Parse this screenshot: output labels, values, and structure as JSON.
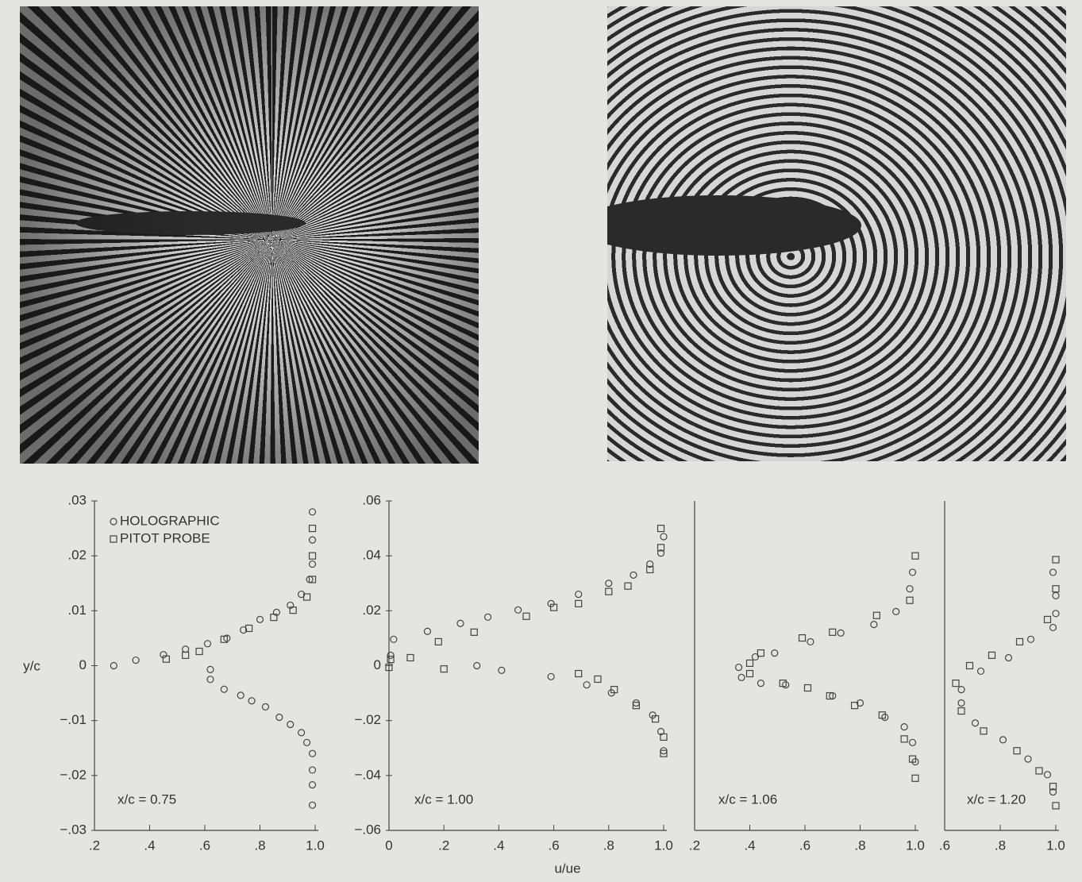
{
  "chart_data": [
    {
      "type": "scatter",
      "annotation": "x/c = 0.75",
      "ylabel": "y/c",
      "xlim": [
        0.2,
        1.0
      ],
      "xticks": [
        {
          "value": 0.2,
          "label": ".2"
        },
        {
          "value": 0.4,
          "label": ".4"
        },
        {
          "value": 0.6,
          "label": ".6"
        },
        {
          "value": 0.8,
          "label": ".8"
        },
        {
          "value": 1.0,
          "label": "1.0"
        }
      ],
      "ylim": [
        -0.03,
        0.03
      ],
      "yticks": [
        {
          "value": 0.03,
          "label": ".03"
        },
        {
          "value": 0.02,
          "label": ".02"
        },
        {
          "value": 0.01,
          "label": ".01"
        },
        0,
        {
          "value": -0.01,
          "label": "−.01"
        },
        {
          "value": -0.02,
          "label": "−.02"
        },
        {
          "value": -0.03,
          "label": "−.03"
        }
      ],
      "series": [
        {
          "name": "HOLOGRAPHIC",
          "marker": "circle",
          "color": "#444",
          "x": [
            0.99,
            0.99,
            0.99,
            0.98,
            0.95,
            0.91,
            0.86,
            0.8,
            0.74,
            0.68,
            0.61,
            0.53,
            0.45,
            0.35,
            0.27,
            0.62,
            0.62,
            0.67,
            0.73,
            0.77,
            0.82,
            0.87,
            0.91,
            0.95,
            0.97,
            0.99,
            0.99,
            0.99,
            0.99
          ],
          "values": [
            0.028,
            0.0229,
            0.0185,
            0.0157,
            0.013,
            0.011,
            0.0097,
            0.0084,
            0.0065,
            0.005,
            0.004,
            0.003,
            0.002,
            0.001,
            0.0,
            -0.0007,
            -0.0025,
            -0.0043,
            -0.0054,
            -0.0064,
            -0.0075,
            -0.0094,
            -0.0107,
            -0.0122,
            -0.014,
            -0.016,
            -0.019,
            -0.0217,
            -0.0254
          ]
        },
        {
          "name": "PITOT PROBE",
          "marker": "square",
          "color": "#444",
          "x": [
            0.99,
            0.99,
            0.99,
            0.97,
            0.92,
            0.85,
            0.76,
            0.67,
            0.58,
            0.53,
            0.46
          ],
          "values": [
            0.025,
            0.02,
            0.0157,
            0.0125,
            0.0101,
            0.0088,
            0.0068,
            0.0048,
            0.0026,
            0.0019,
            0.0012
          ]
        }
      ]
    },
    {
      "type": "scatter",
      "annotation": "x/c = 1.00",
      "xlabel": "u/ue",
      "xlim": [
        0,
        1.0
      ],
      "xticks": [
        0,
        {
          "value": 0.2,
          "label": ".2"
        },
        {
          "value": 0.4,
          "label": ".4"
        },
        {
          "value": 0.6,
          "label": ".6"
        },
        {
          "value": 0.8,
          "label": ".8"
        },
        {
          "value": 1.0,
          "label": "1.0"
        }
      ],
      "ylim": [
        -0.06,
        0.06
      ],
      "yticks": [
        {
          "value": 0.06,
          "label": ".06"
        },
        {
          "value": 0.04,
          "label": ".04"
        },
        {
          "value": 0.02,
          "label": ".02"
        },
        0,
        {
          "value": -0.02,
          "label": "−.02"
        },
        {
          "value": -0.04,
          "label": "−.04"
        },
        {
          "value": -0.06,
          "label": "−.06"
        }
      ],
      "series": [
        {
          "marker": "circle",
          "color": "#444",
          "x": [
            1.0,
            0.99,
            0.95,
            0.89,
            0.8,
            0.69,
            0.59,
            0.47,
            0.36,
            0.26,
            0.14,
            0.017,
            0.006,
            0.32,
            0.41,
            0.59,
            0.72,
            0.81,
            0.9,
            0.96,
            0.99,
            1.0
          ],
          "values": [
            0.047,
            0.041,
            0.037,
            0.033,
            0.03,
            0.026,
            0.0226,
            0.0203,
            0.0177,
            0.0154,
            0.0125,
            0.0096,
            0.0038,
            0.0,
            -0.0017,
            -0.004,
            -0.007,
            -0.0099,
            -0.0136,
            -0.018,
            -0.024,
            -0.031
          ]
        },
        {
          "marker": "square",
          "color": "#444",
          "x": [
            0.99,
            0.99,
            0.95,
            0.87,
            0.8,
            0.69,
            0.6,
            0.5,
            0.31,
            0.18,
            0.078,
            0.006,
            0.0,
            0.2,
            0.69,
            0.76,
            0.82,
            0.9,
            0.97,
            1.0,
            1.0
          ],
          "values": [
            0.05,
            0.043,
            0.035,
            0.029,
            0.027,
            0.0226,
            0.0212,
            0.018,
            0.0122,
            0.0087,
            0.0029,
            0.0023,
            -0.0006,
            -0.0012,
            -0.0029,
            -0.0049,
            -0.0087,
            -0.0145,
            -0.0194,
            -0.026,
            -0.032
          ]
        }
      ]
    },
    {
      "type": "scatter",
      "annotation": "x/c = 1.06",
      "xlim": [
        0.2,
        1.0
      ],
      "xticks": [
        {
          "value": 0.2,
          "label": ".2"
        },
        {
          "value": 0.4,
          "label": ".4"
        },
        {
          "value": 0.6,
          "label": ".6"
        },
        {
          "value": 0.8,
          "label": ".8"
        },
        {
          "value": 1.0,
          "label": "1.0"
        }
      ],
      "ylim": [
        -0.06,
        0.06
      ],
      "series": [
        {
          "marker": "circle",
          "color": "#444",
          "x": [
            0.99,
            0.98,
            0.93,
            0.85,
            0.73,
            0.62,
            0.49,
            0.42,
            0.36,
            0.37,
            0.44,
            0.53,
            0.7,
            0.8,
            0.89,
            0.96,
            0.99,
            1.0
          ],
          "values": [
            0.034,
            0.028,
            0.0197,
            0.015,
            0.0119,
            0.0087,
            0.0046,
            0.0032,
            -0.0006,
            -0.0043,
            -0.0064,
            -0.007,
            -0.011,
            -0.0136,
            -0.0188,
            -0.0223,
            -0.028,
            -0.035
          ]
        },
        {
          "marker": "square",
          "color": "#444",
          "x": [
            1.0,
            0.98,
            0.86,
            0.7,
            0.59,
            0.44,
            0.4,
            0.4,
            0.52,
            0.61,
            0.69,
            0.78,
            0.88,
            0.96,
            0.99,
            1.0
          ],
          "values": [
            0.04,
            0.0238,
            0.0183,
            0.0122,
            0.0101,
            0.0046,
            0.0009,
            -0.0029,
            -0.0064,
            -0.0081,
            -0.011,
            -0.0145,
            -0.018,
            -0.0267,
            -0.034,
            -0.041
          ]
        }
      ]
    },
    {
      "type": "scatter",
      "annotation": "x/c = 1.20",
      "xlim": [
        0.6,
        1.0
      ],
      "xticks": [
        {
          "value": 0.6,
          "label": ".6"
        },
        {
          "value": 0.8,
          "label": ".8"
        },
        {
          "value": 1.0,
          "label": "1.0"
        }
      ],
      "ylim": [
        -0.06,
        0.06
      ],
      "series": [
        {
          "marker": "circle",
          "color": "#444",
          "x": [
            0.99,
            1.0,
            1.0,
            0.99,
            0.91,
            0.83,
            0.73,
            0.66,
            0.66,
            0.71,
            0.81,
            0.9,
            0.97,
            0.99
          ],
          "values": [
            0.034,
            0.0255,
            0.019,
            0.0139,
            0.0096,
            0.0029,
            -0.002,
            -0.0087,
            -0.0136,
            -0.0209,
            -0.027,
            -0.034,
            -0.0397,
            -0.046
          ]
        },
        {
          "marker": "square",
          "color": "#444",
          "x": [
            1.0,
            1.0,
            0.97,
            0.87,
            0.77,
            0.69,
            0.64,
            0.66,
            0.74,
            0.86,
            0.94,
            0.99,
            1.0
          ],
          "values": [
            0.0386,
            0.028,
            0.0168,
            0.0087,
            0.0038,
            0.0,
            -0.0064,
            -0.0165,
            -0.0238,
            -0.031,
            -0.0383,
            -0.044,
            -0.051
          ]
        }
      ]
    }
  ]
}
